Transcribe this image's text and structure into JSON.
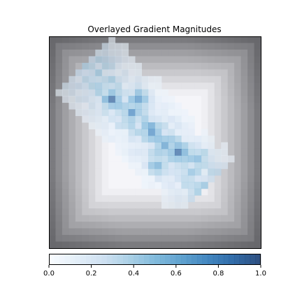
{
  "chart_data": {
    "type": "heatmap",
    "title": "Overlayed Gradient Magnitudes",
    "xlabel": "",
    "ylabel": "",
    "grid": false,
    "axes_ticks": false,
    "grid_size": [
      32,
      32
    ],
    "base_layer": {
      "colormap": "gray",
      "description_values": "grayscale gradient magnitude, dark along the borders fading to white toward the center"
    },
    "overlay_layer": {
      "colormap": "Blues",
      "alpha": 0.6,
      "hot_regions": [
        {
          "row": 9,
          "col": 9,
          "value": 0.85
        },
        {
          "row": 9,
          "col": 13,
          "value": 0.75
        },
        {
          "row": 11,
          "col": 12,
          "value": 0.7
        },
        {
          "row": 14,
          "col": 15,
          "value": 0.9
        },
        {
          "row": 16,
          "col": 17,
          "value": 0.85
        },
        {
          "row": 17,
          "col": 19,
          "value": 0.9
        },
        {
          "row": 18,
          "col": 22,
          "value": 0.7
        },
        {
          "row": 19,
          "col": 16,
          "value": 0.75
        }
      ]
    },
    "colorbar": {
      "colormap": "Blues",
      "min": 0.0,
      "max": 1.0,
      "ticks": [
        "0.0",
        "0.2",
        "0.4",
        "0.6",
        "0.8",
        "1.0"
      ],
      "tick_values": [
        0.0,
        0.2,
        0.4,
        0.6,
        0.8,
        1.0
      ],
      "orientation": "horizontal",
      "placement": "bottom"
    }
  }
}
